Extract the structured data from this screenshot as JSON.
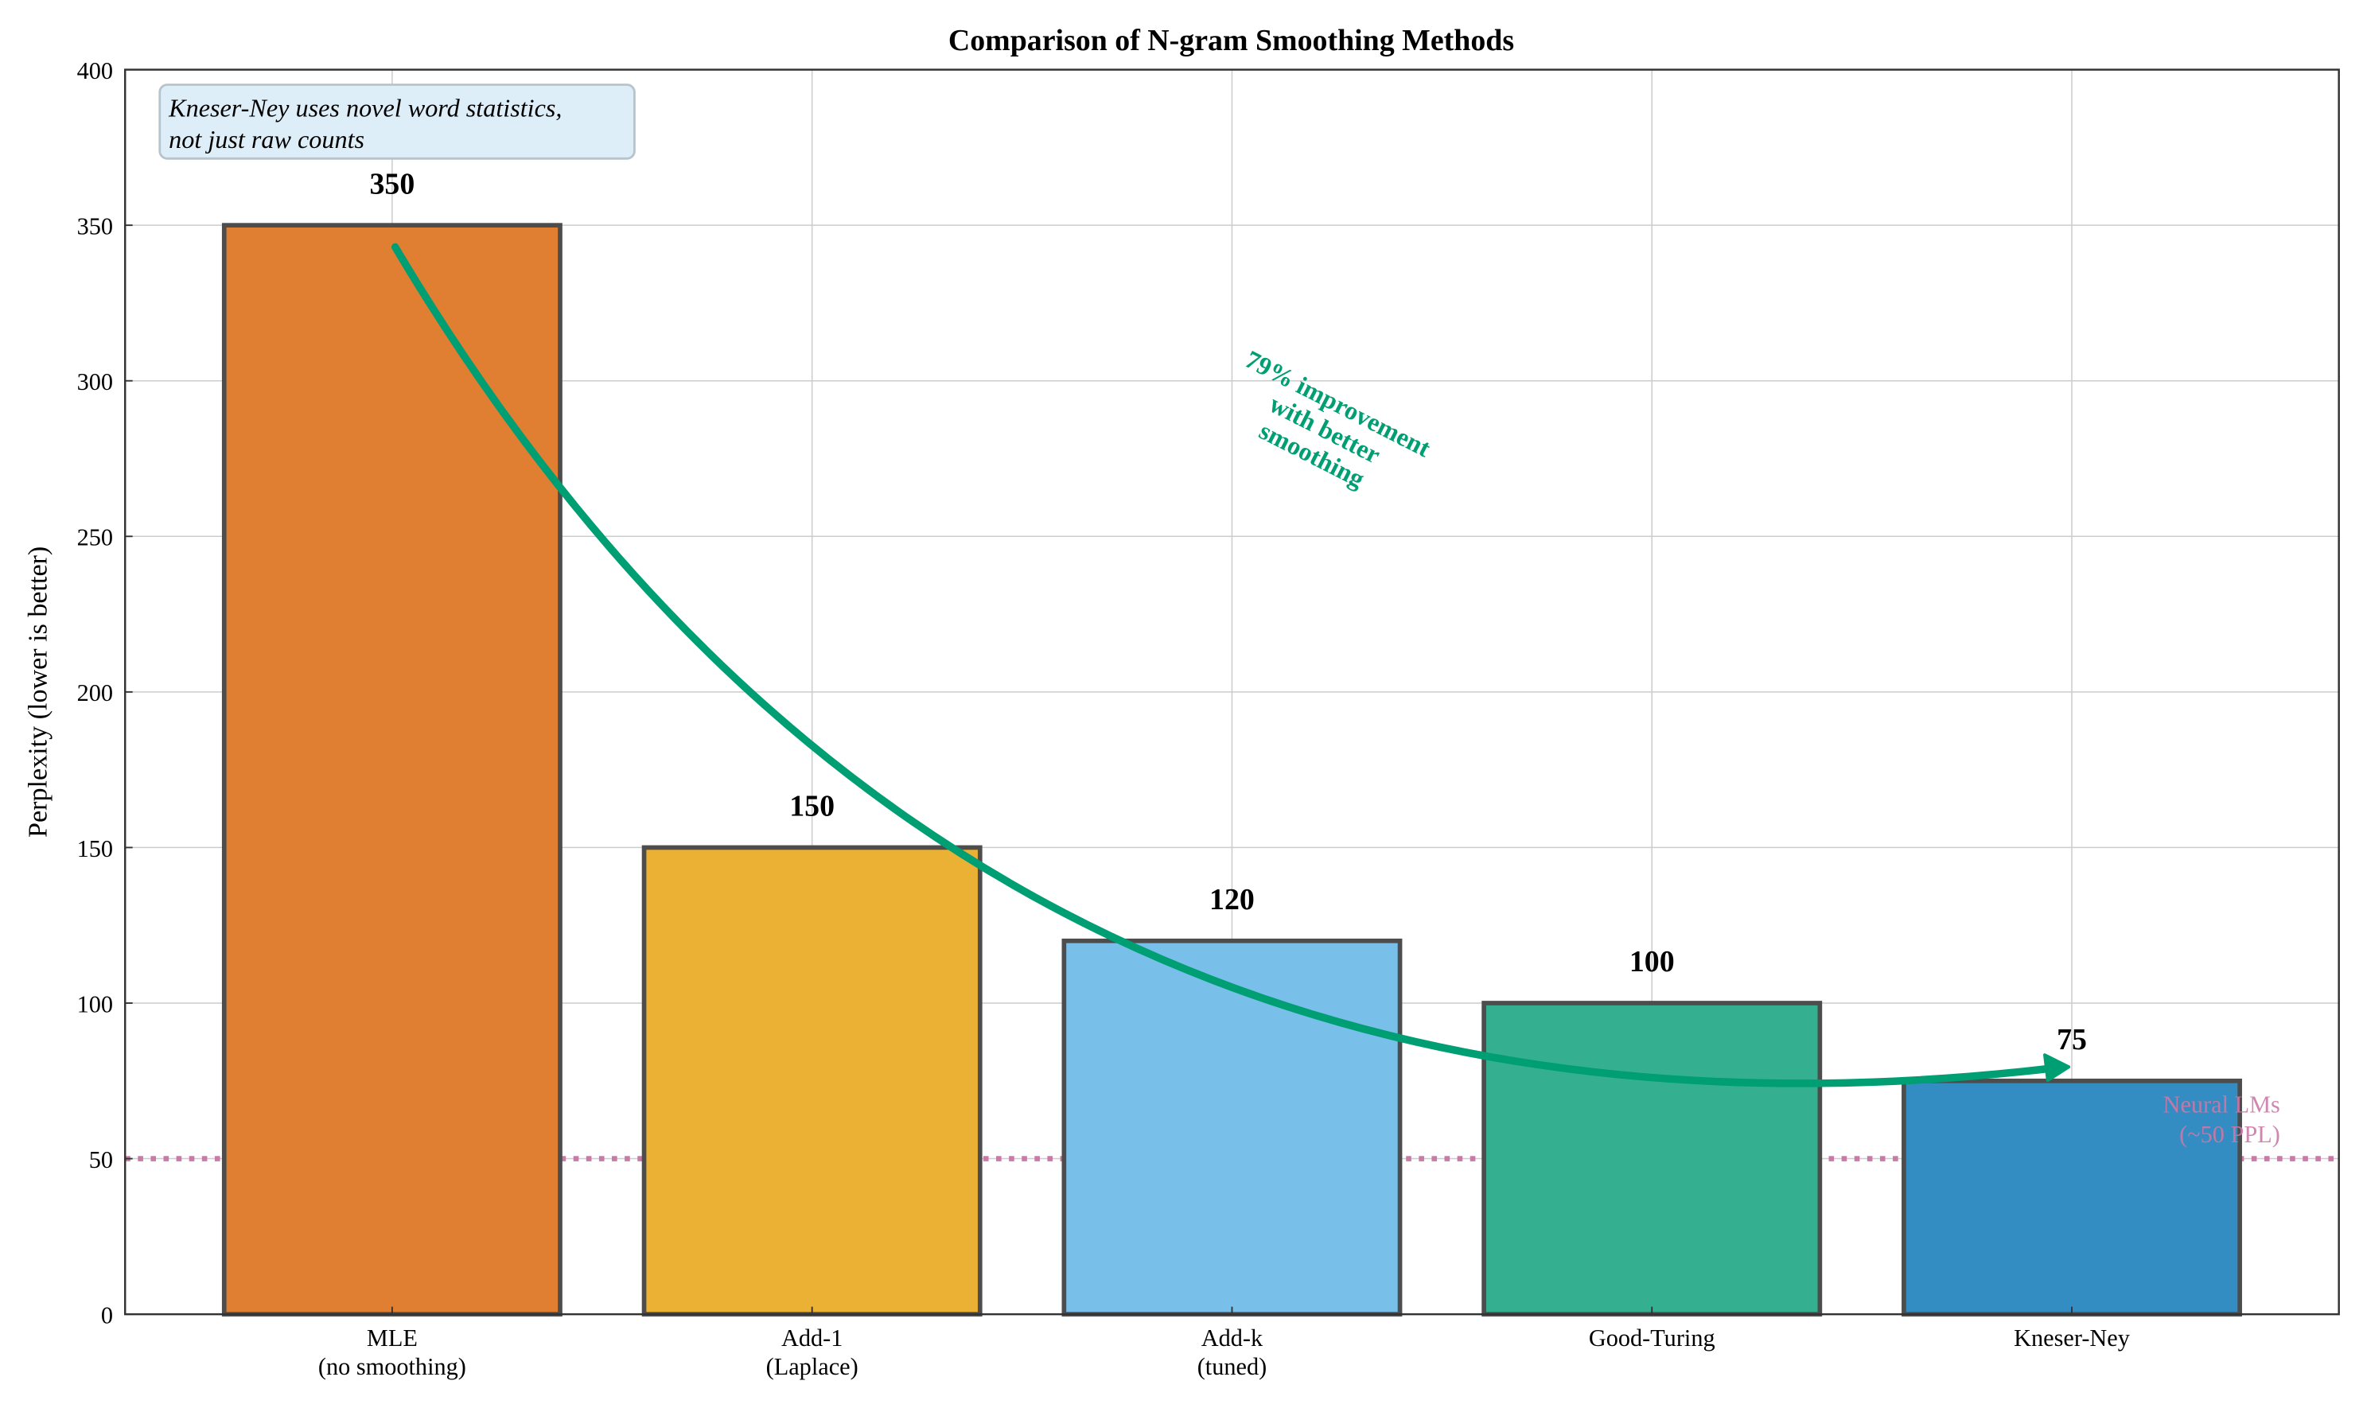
{
  "chart_data": {
    "type": "bar",
    "title": "Comparison of N-gram Smoothing Methods",
    "xlabel": "",
    "ylabel": "Perplexity (lower is better)",
    "ylim": [
      0,
      400
    ],
    "yticks": [
      "0",
      "50",
      "100",
      "150",
      "200",
      "250",
      "300",
      "350",
      "400"
    ],
    "grid": true,
    "categories": [
      [
        "MLE",
        "(no smoothing)"
      ],
      [
        "Add-1",
        "(Laplace)"
      ],
      [
        "Add-k",
        "(tuned)"
      ],
      [
        "Good-Turing"
      ],
      [
        "Kneser-Ney"
      ]
    ],
    "values": [
      350,
      150,
      120,
      100,
      75
    ],
    "value_labels": [
      "350",
      "150",
      "120",
      "100",
      "75"
    ],
    "bar_colors": [
      "#E07F32",
      "#EBB134",
      "#78BFEA",
      "#34B090",
      "#348DC2"
    ],
    "bar_edge_color": "#4D4D4D",
    "reference_line": {
      "value": 50,
      "style": "dotted",
      "color": "#CC79A7",
      "label": [
        "Neural LMs",
        "(~50 PPL)"
      ]
    },
    "arrow_annotation": {
      "from": {
        "category": "MLE",
        "value": 343
      },
      "to": {
        "category": "Kneser-Ney",
        "value": 79
      },
      "color": "#009E73",
      "text": [
        "79% improvement",
        "with better",
        "smoothing"
      ]
    },
    "info_box": {
      "text": [
        "Kneser-Ney uses novel word statistics,",
        "not just raw counts"
      ],
      "background": "#DDEEF8"
    }
  }
}
